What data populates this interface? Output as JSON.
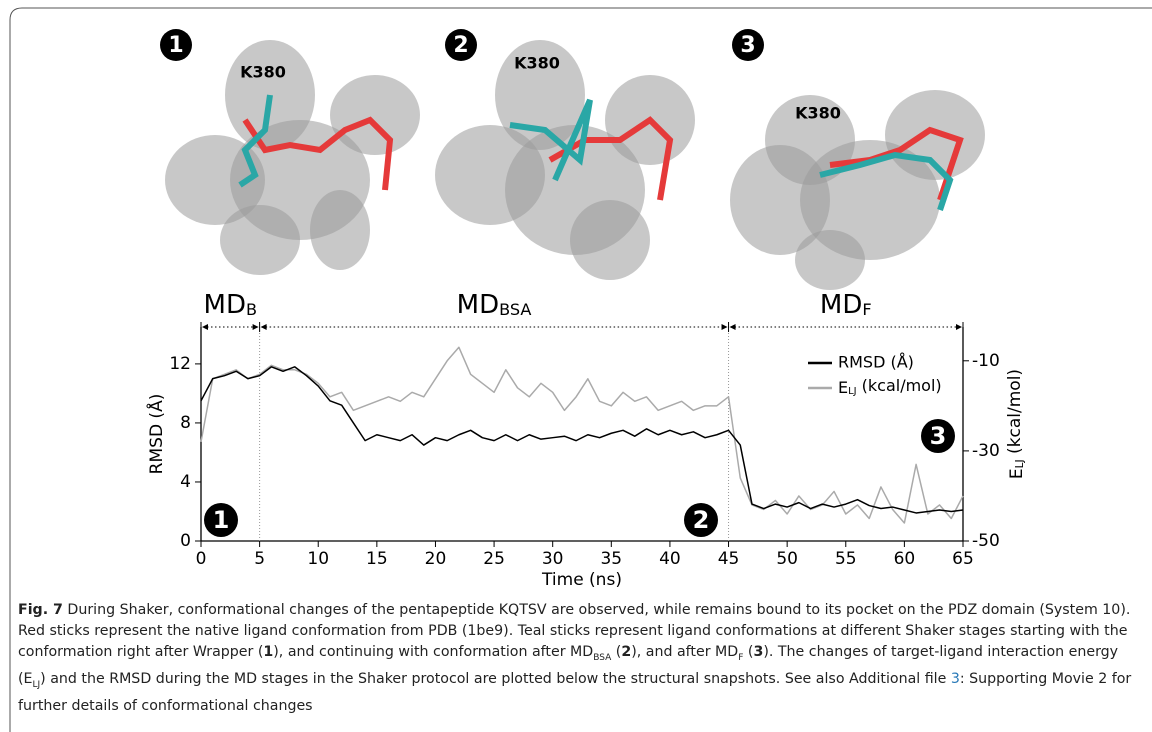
{
  "panels": {
    "labels": [
      "1",
      "2",
      "3"
    ],
    "residue": [
      "K380",
      "K380",
      "K380"
    ]
  },
  "chart_data": {
    "type": "line",
    "stages": [
      [
        "MD",
        "B"
      ],
      [
        "MD",
        "BSA"
      ],
      [
        "MD",
        "F"
      ]
    ],
    "stage_bounds": [
      0,
      5,
      45,
      65
    ],
    "annotations": [
      "1",
      "2",
      "3"
    ],
    "xlabel": "Time (ns)",
    "ylabel": "RMSD (Å)",
    "y2label": [
      "E",
      "LJ",
      " (kcal/mol)"
    ],
    "xlim": [
      0,
      65
    ],
    "xticks": [
      0,
      5,
      10,
      15,
      20,
      25,
      30,
      35,
      40,
      45,
      50,
      55,
      60,
      65
    ],
    "ylim": [
      0,
      14.5
    ],
    "yticks": [
      0,
      4,
      8,
      12
    ],
    "y2lim": [
      -50,
      -2.5
    ],
    "y2ticks": [
      -50,
      -30,
      -10
    ],
    "x": [
      0,
      1,
      2,
      3,
      4,
      5,
      6,
      7,
      8,
      9,
      10,
      11,
      12,
      13,
      14,
      15,
      16,
      17,
      18,
      19,
      20,
      21,
      22,
      23,
      24,
      25,
      26,
      27,
      28,
      29,
      30,
      31,
      32,
      33,
      34,
      35,
      36,
      37,
      38,
      39,
      40,
      41,
      42,
      43,
      44,
      45,
      46,
      47,
      48,
      49,
      50,
      51,
      52,
      53,
      54,
      55,
      56,
      57,
      58,
      59,
      60,
      61,
      62,
      63,
      64,
      65
    ],
    "series": [
      {
        "name": "RMSD (Å)",
        "color": "#000000",
        "values": [
          9.5,
          11,
          11.2,
          11.5,
          11,
          11.2,
          11.8,
          11.5,
          11.8,
          11.2,
          10.5,
          9.5,
          9.2,
          8,
          6.8,
          7.2,
          7,
          6.8,
          7.2,
          6.5,
          7,
          6.8,
          7.2,
          7.5,
          7,
          6.8,
          7.2,
          6.8,
          7.2,
          6.9,
          7,
          7.1,
          6.8,
          7.2,
          7,
          7.3,
          7.5,
          7.1,
          7.6,
          7.2,
          7.5,
          7.2,
          7.4,
          7,
          7.2,
          7.5,
          6.5,
          2.5,
          2.2,
          2.5,
          2.3,
          2.6,
          2.2,
          2.5,
          2.3,
          2.5,
          2.8,
          2.4,
          2.2,
          2.3,
          2.1,
          1.9,
          2,
          2.1,
          2,
          2.1
        ]
      },
      {
        "name": [
          "E",
          "LJ",
          " (kcal/mol)"
        ],
        "color": "#aaaaaa",
        "axis": "y2",
        "values": [
          -28,
          -14,
          -13,
          -12,
          -14,
          -13,
          -11,
          -12,
          -12,
          -13,
          -15,
          -18,
          -17,
          -21,
          -20,
          -19,
          -18,
          -19,
          -17,
          -18,
          -14,
          -10,
          -7,
          -13,
          -15,
          -17,
          -12,
          -16,
          -18,
          -15,
          -17,
          -21,
          -18,
          -14,
          -19,
          -20,
          -17,
          -19,
          -18,
          -21,
          -20,
          -19,
          -21,
          -20,
          -20,
          -18,
          -36,
          -42,
          -43,
          -41,
          -44,
          -40,
          -43,
          -42,
          -39,
          -44,
          -42,
          -45,
          -38,
          -43,
          -46,
          -33,
          -44,
          -42,
          -45,
          -40
        ]
      }
    ]
  },
  "caption": {
    "runs": [
      "Fig. 7",
      "  During Shaker, conformational changes of the pentapeptide KQTSV are observed, while remains bound to its pocket on the PDZ domain (System 10). Red sticks represent the native ligand conformation from PDB (1be9). Teal sticks represent ligand conformations at different Shaker stages starting with the conformation right after Wrapper (",
      "1",
      "), and continuing with conformation after MD",
      "BSA",
      " (",
      "2",
      "), and after MD",
      "F",
      " (",
      "3",
      "). The changes of target-ligand interaction energy (E",
      "LJ",
      ") and the RMSD during the MD stages in the Shaker protocol are plotted below the structural snapshots. See also Additional file ",
      "3",
      ": Supporting Movie 2 for further details of conformational changes"
    ]
  }
}
